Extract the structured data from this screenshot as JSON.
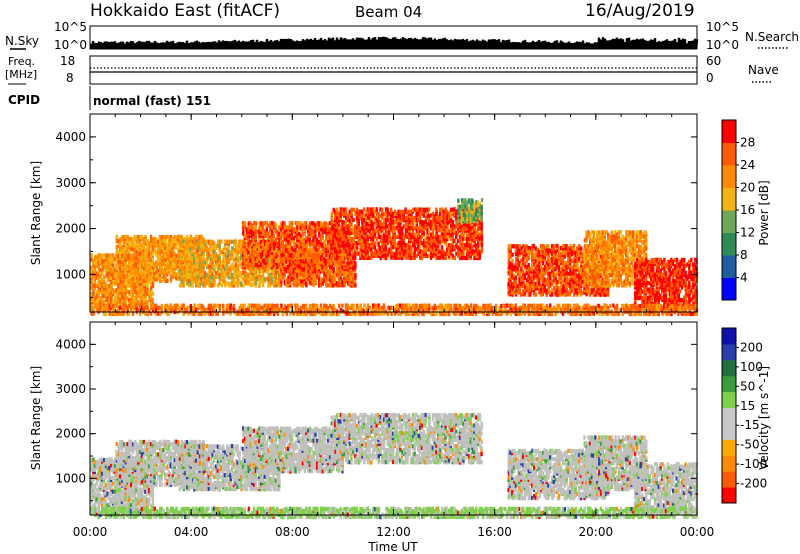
{
  "header": {
    "station": "Hokkaido East (fitACF)",
    "beam": "Beam 04",
    "date": "16/Aug/2019"
  },
  "summary": {
    "nsky_label": "N.Sky",
    "nsearch_label": "N.Search",
    "nsky_ticks": [
      "10^5",
      "10^0"
    ],
    "nsearch_ticks": [
      "10^5",
      "10^0"
    ],
    "freq_label_1": "Freq.",
    "freq_label_2": "[MHz]",
    "freq_ticks": [
      "18",
      "8"
    ],
    "nave_label": "Nave",
    "nave_ticks": [
      "60",
      "0"
    ],
    "cpid_label": "CPID",
    "cpid_value": "normal (fast) 151"
  },
  "colors": {
    "power": [
      "#0000ff",
      "#1f5fa0",
      "#2e8b57",
      "#6fa858",
      "#f3b315",
      "#ff8c00",
      "#ff5a00",
      "#ff0000"
    ],
    "velocity": [
      "#ff0000",
      "#ff5a00",
      "#ff8c00",
      "#ffaa00",
      "#c8c8c8",
      "#c8c8c8",
      "#7fd04a",
      "#3a9c3a",
      "#1f6f3f",
      "#2a3faa",
      "#1010aa"
    ],
    "ground_scatter": "#c0c0bd"
  },
  "chart_data": [
    {
      "type": "heatmap",
      "name": "power-panel",
      "ylabel": "Slant Range [km]",
      "yticks": [
        "4000",
        "3000",
        "2000",
        "1000"
      ],
      "ylim": [
        180,
        4500
      ],
      "xlim": [
        0,
        24
      ],
      "colorbar_label": "Power [dB]",
      "colorbar_ticks": [
        "28",
        "24",
        "20",
        "16",
        "12",
        "8",
        "4"
      ],
      "clim": [
        0,
        32
      ],
      "scatter_bands": [
        {
          "t0": 0.0,
          "t1": 2.5,
          "r0": 300,
          "r1": 1500,
          "value": 22
        },
        {
          "t0": 1.0,
          "t1": 4.5,
          "r0": 900,
          "r1": 1900,
          "value": 21
        },
        {
          "t0": 3.5,
          "t1": 7.5,
          "r0": 800,
          "r1": 1800,
          "value": 20
        },
        {
          "t0": 6.0,
          "t1": 10.0,
          "r0": 1200,
          "r1": 2200,
          "value": 26
        },
        {
          "t0": 7.5,
          "t1": 10.5,
          "r0": 800,
          "r1": 1500,
          "value": 26
        },
        {
          "t0": 9.5,
          "t1": 15.5,
          "r0": 1400,
          "r1": 2500,
          "value": 28
        },
        {
          "t0": 14.5,
          "t1": 15.5,
          "r0": 2200,
          "r1": 2700,
          "value": 14
        },
        {
          "t0": 16.5,
          "t1": 20.5,
          "r0": 600,
          "r1": 1700,
          "value": 27
        },
        {
          "t0": 19.5,
          "t1": 22.0,
          "r0": 800,
          "r1": 2000,
          "value": 22
        },
        {
          "t0": 21.5,
          "t1": 24.0,
          "r0": 300,
          "r1": 1400,
          "value": 29
        },
        {
          "t0": 0.0,
          "t1": 24.0,
          "r0": 180,
          "r1": 400,
          "value": 24
        }
      ]
    },
    {
      "type": "heatmap",
      "name": "velocity-panel",
      "ylabel": "Slant Range [km]",
      "yticks": [
        "4000",
        "3000",
        "2000",
        "1000"
      ],
      "ylim": [
        180,
        4500
      ],
      "xlim": [
        0,
        24
      ],
      "colorbar_label": "Velocity [m s^-1]",
      "colorbar_ticks": [
        "200",
        "100",
        "50",
        "15",
        "-15",
        "-50",
        "-100",
        "-200"
      ],
      "clim": [
        -250,
        250
      ],
      "scatter_bands": [
        {
          "t0": 0.0,
          "t1": 2.5,
          "r0": 300,
          "r1": 1500,
          "value": 0
        },
        {
          "t0": 1.0,
          "t1": 4.5,
          "r0": 900,
          "r1": 1900,
          "value": 0
        },
        {
          "t0": 3.5,
          "t1": 7.5,
          "r0": 800,
          "r1": 1800,
          "value": 0
        },
        {
          "t0": 6.0,
          "t1": 10.0,
          "r0": 1200,
          "r1": 2200,
          "value": 0
        },
        {
          "t0": 9.5,
          "t1": 15.5,
          "r0": 1400,
          "r1": 2500,
          "value": 0
        },
        {
          "t0": 12.0,
          "t1": 13.0,
          "r0": 1900,
          "r1": 2100,
          "value": 40
        },
        {
          "t0": 16.5,
          "t1": 20.5,
          "r0": 600,
          "r1": 1700,
          "value": 0
        },
        {
          "t0": 19.5,
          "t1": 22.0,
          "r0": 800,
          "r1": 2000,
          "value": 0
        },
        {
          "t0": 21.5,
          "t1": 24.0,
          "r0": 300,
          "r1": 1400,
          "value": 0
        },
        {
          "t0": 0.0,
          "t1": 24.0,
          "r0": 180,
          "r1": 400,
          "value": 30
        }
      ]
    }
  ],
  "xaxis": {
    "label": "Time UT",
    "ticks": [
      "00:00",
      "04:00",
      "08:00",
      "12:00",
      "16:00",
      "20:00",
      "00:00"
    ]
  }
}
